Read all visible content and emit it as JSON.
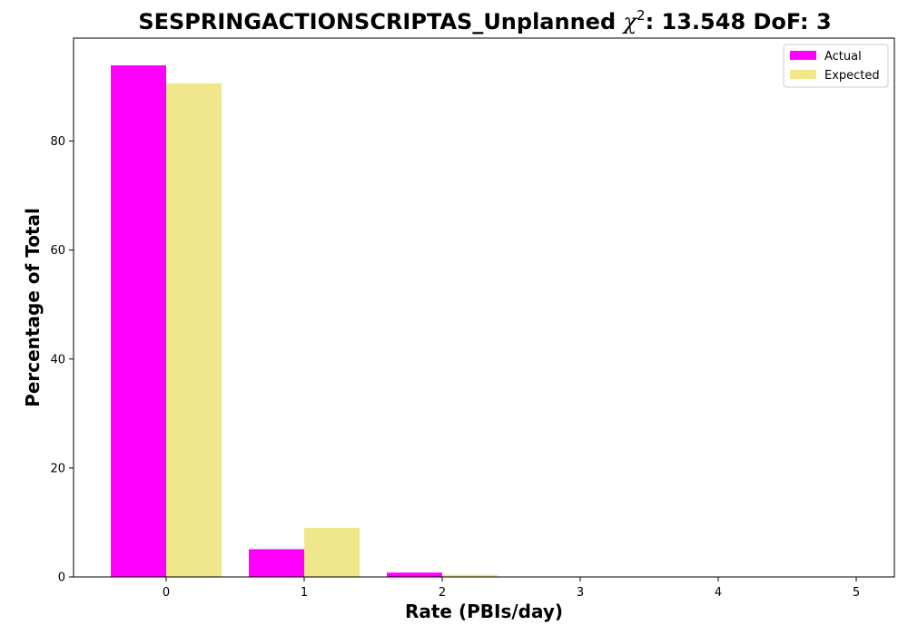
{
  "chart_data": {
    "type": "bar",
    "title_prefix": "SESPRINGACTIONSCRIPTAS_Unplanned ",
    "title_symbol": "χ",
    "title_superscript": "2",
    "title_suffix": ": 13.548 DoF: 3",
    "xlabel": "Rate (PBIs/day)",
    "ylabel": "Percentage of Total",
    "categories": [
      "0",
      "1",
      "2",
      "3",
      "4",
      "5"
    ],
    "ylim": [
      0,
      98.9
    ],
    "yticks": [
      0,
      20,
      40,
      60,
      80
    ],
    "legend_position": "top-right",
    "grid": false,
    "series": [
      {
        "name": "Actual",
        "color": "#ff00ff",
        "values": [
          93.9,
          5.1,
          0.8,
          0.07,
          0.07,
          0.07
        ]
      },
      {
        "name": "Expected",
        "color": "#f0e68c",
        "values": [
          90.6,
          9.0,
          0.4,
          0.0,
          0.0,
          0.0
        ]
      }
    ]
  }
}
